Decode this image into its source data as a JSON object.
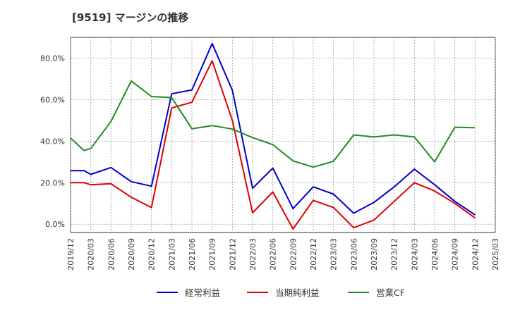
{
  "chart_data": {
    "type": "line",
    "title": "[9519]  マージンの推移",
    "xlabel": "",
    "ylabel": "",
    "ylim": [
      -4,
      90
    ],
    "y_ticks": [
      "0.0%",
      "20.0%",
      "40.0%",
      "60.0%",
      "80.0%"
    ],
    "y_tick_values": [
      0,
      20,
      40,
      60,
      80
    ],
    "x_ticks": [
      "2019/12",
      "2020/03",
      "2020/06",
      "2020/09",
      "2020/12",
      "2021/03",
      "2021/06",
      "2021/09",
      "2021/12",
      "2022/03",
      "2022/06",
      "2022/09",
      "2022/12",
      "2023/03",
      "2023/06",
      "2023/09",
      "2023/12",
      "2024/03",
      "2024/06",
      "2024/09",
      "2024/12",
      "2025/03"
    ],
    "grid": true,
    "legend_position": "bottom",
    "series": [
      {
        "name": "経常利益",
        "color": "#0000cc",
        "points": [
          [
            "2019/12",
            25.8
          ],
          [
            "2020/02",
            25.8
          ],
          [
            "2020/03",
            24.0
          ],
          [
            "2020/06",
            27.3
          ],
          [
            "2020/09",
            20.5
          ],
          [
            "2020/12",
            18.3
          ],
          [
            "2021/03",
            62.8
          ],
          [
            "2021/06",
            64.7
          ],
          [
            "2021/09",
            87.0
          ],
          [
            "2021/12",
            64.5
          ],
          [
            "2022/03",
            17.3
          ],
          [
            "2022/06",
            27.0
          ],
          [
            "2022/09",
            7.5
          ],
          [
            "2022/12",
            18.0
          ],
          [
            "2023/03",
            14.5
          ],
          [
            "2023/06",
            5.3
          ],
          [
            "2023/09",
            10.5
          ],
          [
            "2023/12",
            18.0
          ],
          [
            "2024/03",
            26.5
          ],
          [
            "2024/06",
            19.0
          ],
          [
            "2024/09",
            11.0
          ],
          [
            "2024/12",
            4.5
          ]
        ]
      },
      {
        "name": "当期純利益",
        "color": "#dd0000",
        "points": [
          [
            "2019/12",
            20.0
          ],
          [
            "2020/02",
            20.0
          ],
          [
            "2020/03",
            19.0
          ],
          [
            "2020/06",
            19.5
          ],
          [
            "2020/09",
            13.0
          ],
          [
            "2020/12",
            8.0
          ],
          [
            "2021/03",
            56.0
          ],
          [
            "2021/06",
            58.7
          ],
          [
            "2021/09",
            78.7
          ],
          [
            "2021/12",
            50.0
          ],
          [
            "2022/03",
            5.5
          ],
          [
            "2022/06",
            15.5
          ],
          [
            "2022/09",
            -2.3
          ],
          [
            "2022/12",
            11.5
          ],
          [
            "2023/03",
            8.0
          ],
          [
            "2023/06",
            -1.7
          ],
          [
            "2023/09",
            2.0
          ],
          [
            "2023/12",
            11.0
          ],
          [
            "2024/03",
            20.0
          ],
          [
            "2024/06",
            16.0
          ],
          [
            "2024/09",
            10.0
          ],
          [
            "2024/12",
            3.0
          ]
        ]
      },
      {
        "name": "営業CF",
        "color": "#228b22",
        "points": [
          [
            "2019/12",
            41.5
          ],
          [
            "2020/02",
            35.5
          ],
          [
            "2020/03",
            36.5
          ],
          [
            "2020/06",
            49.5
          ],
          [
            "2020/09",
            69.0
          ],
          [
            "2020/12",
            61.5
          ],
          [
            "2021/03",
            61.0
          ],
          [
            "2021/06",
            46.0
          ],
          [
            "2021/09",
            47.5
          ],
          [
            "2021/12",
            45.8
          ],
          [
            "2022/03",
            41.7
          ],
          [
            "2022/06",
            38.3
          ],
          [
            "2022/09",
            30.5
          ],
          [
            "2022/12",
            27.5
          ],
          [
            "2023/03",
            30.3
          ],
          [
            "2023/06",
            43.0
          ],
          [
            "2023/09",
            42.0
          ],
          [
            "2023/12",
            43.0
          ],
          [
            "2024/03",
            42.0
          ],
          [
            "2024/06",
            30.0
          ],
          [
            "2024/09",
            46.7
          ],
          [
            "2024/12",
            46.5
          ]
        ]
      }
    ]
  }
}
